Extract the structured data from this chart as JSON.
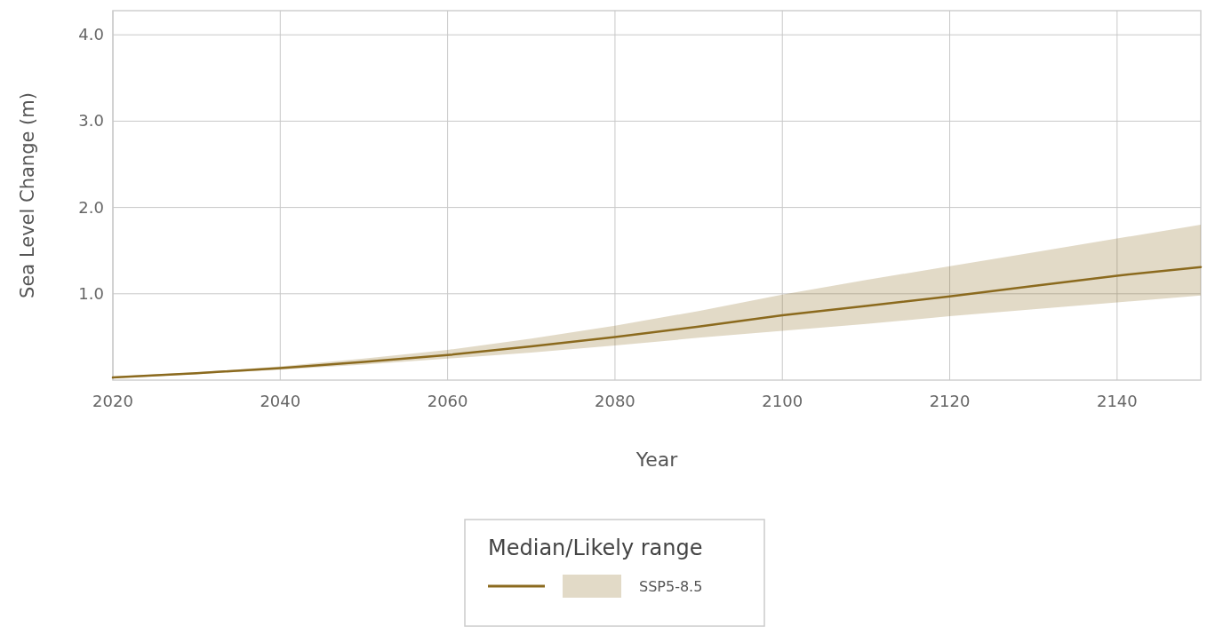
{
  "chart_data": {
    "type": "line",
    "xlabel": "Year",
    "ylabel": "Sea Level Change (m)",
    "legend_title": "Median/Likely range",
    "legend": "bottom",
    "grid": true,
    "x": [
      2020,
      2030,
      2040,
      2050,
      2060,
      2070,
      2080,
      2090,
      2100,
      2110,
      2120,
      2130,
      2140,
      2150
    ],
    "xlim": [
      2020,
      2150
    ],
    "xticks": [
      2020,
      2040,
      2060,
      2080,
      2100,
      2120,
      2140
    ],
    "ylim": [
      0,
      4.28
    ],
    "yticks": [
      {
        "value": 1,
        "label": "1.0"
      },
      {
        "value": 2,
        "label": "2.0"
      },
      {
        "value": 3,
        "label": "3.0"
      },
      {
        "value": 4,
        "label": "4.0"
      }
    ],
    "series": [
      {
        "name": "SSP5-8.5",
        "color": "#8b6a1e",
        "values": [
          0.03,
          0.08,
          0.14,
          0.21,
          0.29,
          0.39,
          0.5,
          0.62,
          0.75,
          0.86,
          0.97,
          1.09,
          1.21,
          1.31
        ],
        "lower": [
          0.02,
          0.07,
          0.12,
          0.18,
          0.25,
          0.32,
          0.4,
          0.49,
          0.57,
          0.65,
          0.74,
          0.82,
          0.9,
          0.98
        ],
        "upper": [
          0.04,
          0.09,
          0.16,
          0.25,
          0.35,
          0.48,
          0.63,
          0.8,
          0.99,
          1.16,
          1.32,
          1.48,
          1.64,
          1.8
        ]
      }
    ]
  }
}
